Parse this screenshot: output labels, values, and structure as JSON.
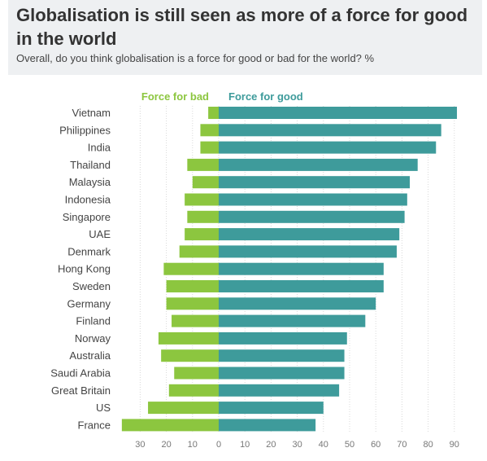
{
  "header": {
    "title": "Globalisation is still seen as more of a force for good in the world",
    "subtitle": "Overall, do you think globalisation is a force for good or bad for the world? %"
  },
  "colors": {
    "bad": "#8cc63f",
    "good": "#3e9b9b",
    "grid": "#d9d9d9"
  },
  "chart_data": {
    "type": "bar",
    "orientation": "horizontal-diverging",
    "categories": [
      "Vietnam",
      "Philippines",
      "India",
      "Thailand",
      "Malaysia",
      "Indonesia",
      "Singapore",
      "UAE",
      "Denmark",
      "Hong Kong",
      "Sweden",
      "Germany",
      "Finland",
      "Norway",
      "Australia",
      "Saudi Arabia",
      "Great Britain",
      "US",
      "France"
    ],
    "series": [
      {
        "name": "Force for bad",
        "values": [
          4,
          7,
          7,
          12,
          10,
          13,
          12,
          13,
          15,
          21,
          20,
          20,
          18,
          23,
          22,
          17,
          19,
          27,
          37
        ]
      },
      {
        "name": "Force for good",
        "values": [
          91,
          85,
          83,
          76,
          73,
          72,
          71,
          69,
          68,
          63,
          63,
          60,
          56,
          49,
          48,
          48,
          46,
          40,
          37
        ]
      }
    ],
    "xlim": [
      -37,
      92
    ],
    "ticks_bad": [
      30,
      20,
      10
    ],
    "ticks_good": [
      0,
      10,
      20,
      30,
      40,
      50,
      60,
      70,
      80,
      90
    ],
    "grid": true,
    "legend": "top"
  }
}
